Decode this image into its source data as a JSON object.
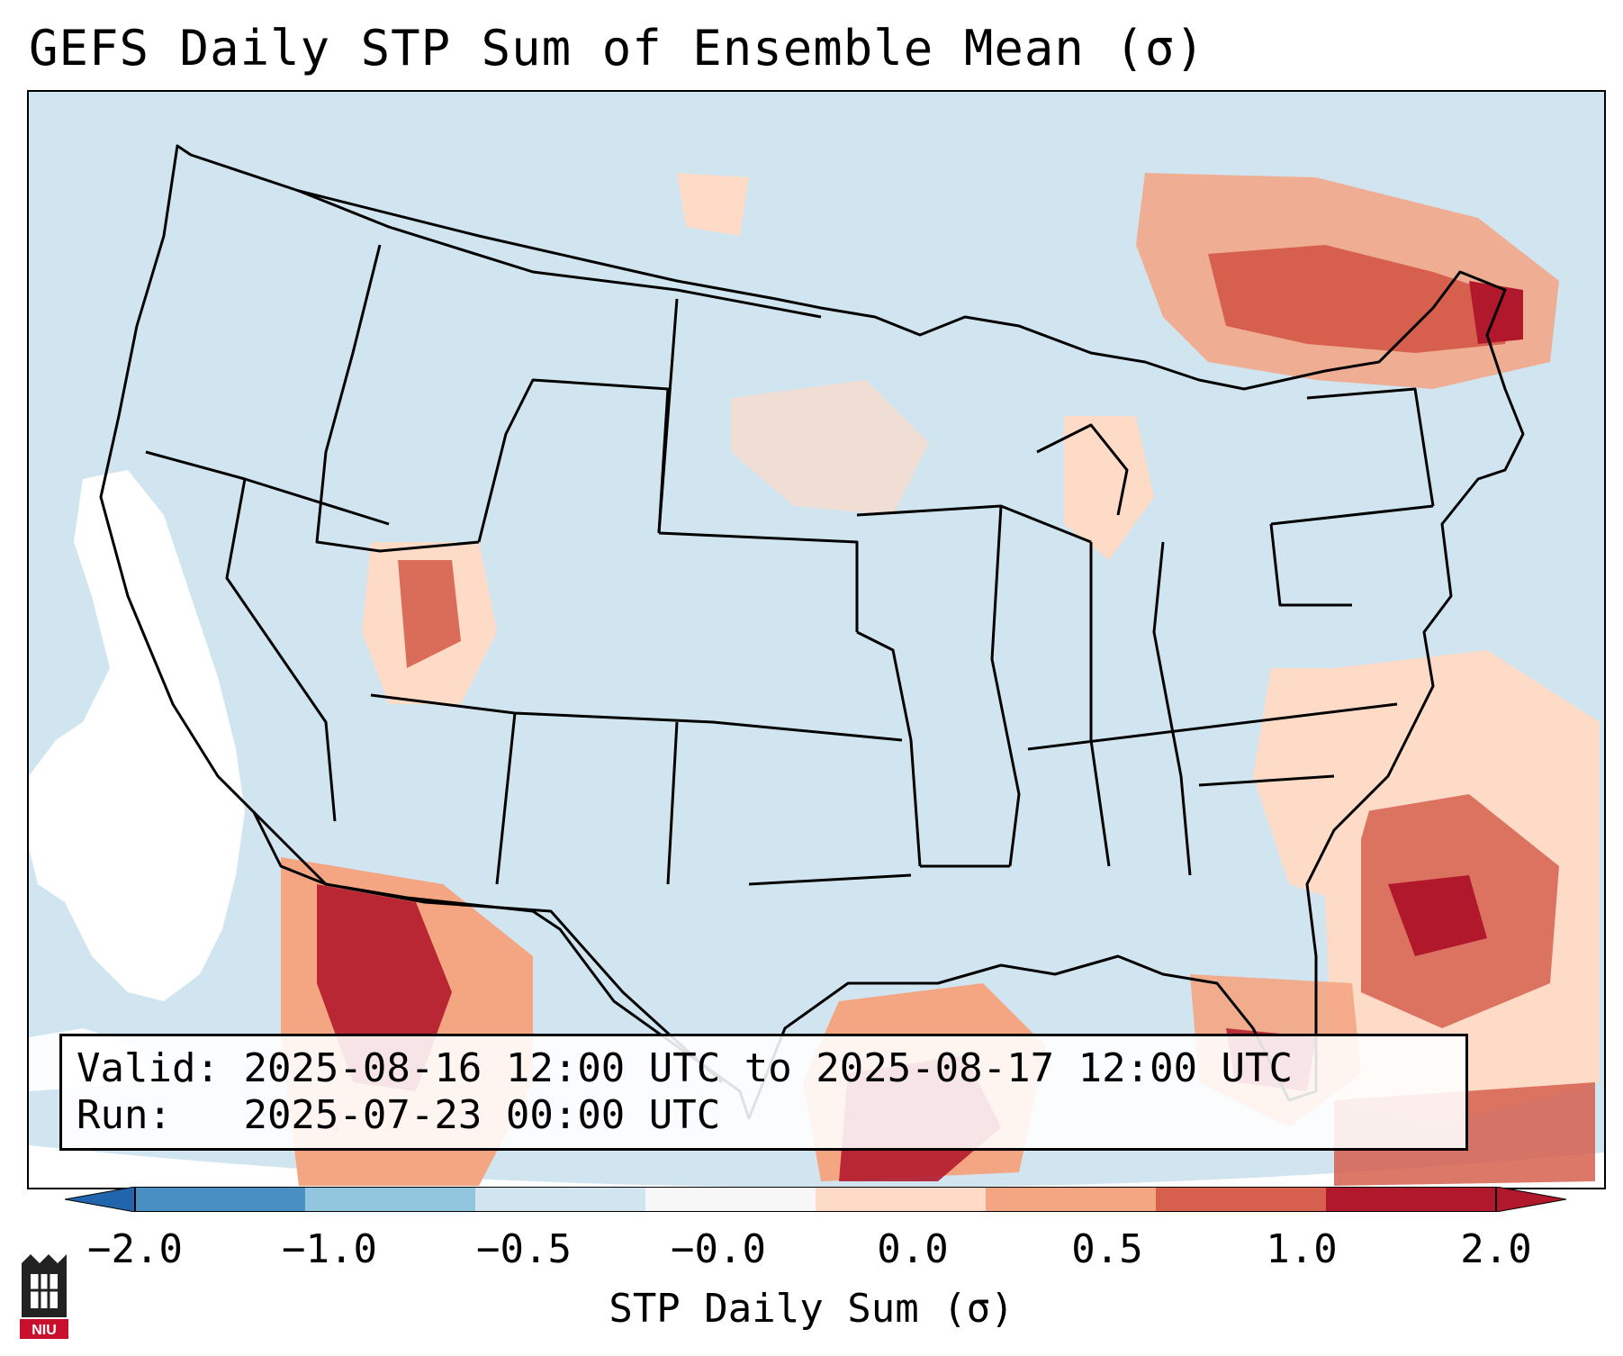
{
  "title": "GEFS Daily STP Sum of Ensemble Mean (σ)",
  "info": {
    "valid_label": "Valid:",
    "valid_value": "2025-08-16 12:00 UTC to 2025-08-17 12:00 UTC",
    "run_label": "Run:",
    "run_value": "2025-07-23 00:00 UTC"
  },
  "colorbar": {
    "label": "STP Daily Sum (σ)",
    "ticks": [
      "−2.0",
      "−1.0",
      "−0.5",
      "−0.0",
      "0.0",
      "0.5",
      "1.0",
      "2.0"
    ],
    "colors": [
      "#4a8fc4",
      "#92c5de",
      "#d1e5f0",
      "#f7f7f7",
      "#fddbc7",
      "#f4a582",
      "#d6604d",
      "#b2182b"
    ],
    "under_color": "#2166ac",
    "over_color": "#b2182b"
  },
  "map": {
    "background_color": "#d1e5f0",
    "land_border_color": "#000000",
    "region": "Continental United States"
  },
  "logo": {
    "text": "NIU"
  }
}
